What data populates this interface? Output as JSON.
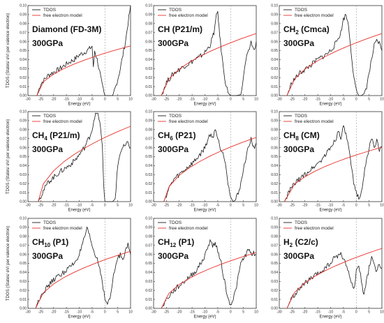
{
  "figure": {
    "ylabel": "TDOS (States/ eV/ per valence electron)",
    "xlabel": "Energy (eV)",
    "legend": [
      "TDOS",
      "free electron model"
    ],
    "pressure": "300GPa"
  },
  "colors": {
    "tdos": "#1a1a1a",
    "free_electron": "#e8302a",
    "zero_line": "#9a9a9a",
    "axis": "#333333"
  },
  "chart_data": [
    {
      "type": "line",
      "title": "Diamond (FD-3M)",
      "formula": "Diamond",
      "subscript": "",
      "formula_rest": "",
      "space_group": "(FD-3M)",
      "xlim": [
        -30,
        10
      ],
      "ylim": [
        0,
        0.1
      ],
      "xticks": [
        -30,
        -25,
        -20,
        -15,
        -10,
        -5,
        0,
        5,
        10
      ],
      "yticks": [
        0.0,
        0.01,
        0.02,
        0.03,
        0.04,
        0.05,
        0.06,
        0.07,
        0.08,
        0.09,
        0.1
      ],
      "series": [
        {
          "name": "TDOS",
          "x": [
            -26.5,
            -25,
            -22,
            -20,
            -18,
            -16,
            -14,
            -12,
            -10,
            -8,
            -6,
            -5,
            -4.5,
            -4,
            -3,
            -2,
            -1,
            0,
            3,
            4,
            5,
            6,
            7,
            8,
            9,
            10
          ],
          "y": [
            0,
            0.013,
            0.023,
            0.026,
            0.029,
            0.033,
            0.037,
            0.04,
            0.045,
            0.048,
            0.052,
            0.055,
            0.03,
            0.05,
            0.04,
            0.026,
            0.01,
            0,
            0,
            0.008,
            0.018,
            0.03,
            0.045,
            0.06,
            0.08,
            0.1
          ]
        },
        {
          "name": "free electron model",
          "x": [
            -26.5,
            -24,
            -20,
            -16,
            -12,
            -8,
            -4,
            0,
            4,
            8,
            10
          ],
          "y": [
            0,
            0.0153,
            0.0237,
            0.0299,
            0.035,
            0.0394,
            0.0434,
            0.0471,
            0.0505,
            0.0537,
            0.0552
          ]
        }
      ]
    },
    {
      "type": "line",
      "title": "CH (P21/m)",
      "formula": "CH",
      "subscript": "",
      "formula_rest": "",
      "space_group": "(P21/m)",
      "xlim": [
        -30,
        10
      ],
      "ylim": [
        0,
        0.1
      ],
      "xticks": [
        -30,
        -25,
        -20,
        -15,
        -10,
        -5,
        0,
        5,
        10
      ],
      "yticks": [
        0.0,
        0.01,
        0.02,
        0.03,
        0.04,
        0.05,
        0.06,
        0.07,
        0.08,
        0.09,
        0.1
      ],
      "series": [
        {
          "name": "TDOS",
          "x": [
            -27,
            -25,
            -22,
            -20,
            -18,
            -16,
            -14,
            -12,
            -10,
            -8,
            -6.5,
            -5.5,
            -5,
            -4.5,
            -4,
            -3,
            -2,
            -1,
            0,
            2,
            4,
            5,
            6,
            7,
            8,
            9,
            10
          ],
          "y": [
            0,
            0.015,
            0.025,
            0.029,
            0.033,
            0.036,
            0.04,
            0.043,
            0.048,
            0.056,
            0.07,
            0.088,
            0.094,
            0.075,
            0.06,
            0.035,
            0.015,
            0.003,
            0,
            0,
            0.001,
            0.02,
            0.04,
            0.048,
            0.06,
            0.05,
            0.06
          ]
        },
        {
          "name": "free electron model",
          "x": [
            -27,
            -24,
            -20,
            -16,
            -12,
            -8,
            -4,
            0,
            4,
            8,
            10
          ],
          "y": [
            0,
            0.0187,
            0.0294,
            0.0371,
            0.0435,
            0.0491,
            0.0541,
            0.0587,
            0.063,
            0.067,
            0.0689
          ]
        }
      ]
    },
    {
      "type": "line",
      "title": "CH2 (Cmca)",
      "formula": "CH",
      "subscript": "2",
      "formula_rest": "",
      "space_group": "(Cmca)",
      "xlim": [
        -30,
        10
      ],
      "ylim": [
        0,
        0.1
      ],
      "xticks": [
        -30,
        -25,
        -20,
        -15,
        -10,
        -5,
        0,
        5,
        10
      ],
      "yticks": [
        0.0,
        0.01,
        0.02,
        0.03,
        0.04,
        0.05,
        0.06,
        0.07,
        0.08,
        0.09,
        0.1
      ],
      "series": [
        {
          "name": "TDOS",
          "x": [
            -27,
            -25,
            -22,
            -20,
            -18,
            -16,
            -14,
            -12,
            -10,
            -8,
            -6,
            -5,
            -4,
            -3,
            -2,
            -1,
            0,
            1,
            2,
            3,
            4,
            5,
            6,
            7,
            8,
            9,
            10
          ],
          "y": [
            0,
            0.015,
            0.025,
            0.029,
            0.033,
            0.038,
            0.042,
            0.045,
            0.05,
            0.058,
            0.07,
            0.085,
            0.09,
            0.078,
            0.05,
            0.02,
            0.005,
            0,
            0,
            0.002,
            0.01,
            0.025,
            0.04,
            0.055,
            0.06,
            0.058,
            0.05
          ]
        },
        {
          "name": "free electron model",
          "x": [
            -27,
            -24,
            -20,
            -16,
            -12,
            -8,
            -4,
            0,
            4,
            8,
            10
          ],
          "y": [
            0,
            0.0187,
            0.0294,
            0.0371,
            0.0435,
            0.0491,
            0.0541,
            0.0587,
            0.063,
            0.067,
            0.0689
          ]
        }
      ]
    },
    {
      "type": "line",
      "title": "CH4 (P21/m)",
      "formula": "CH",
      "subscript": "4",
      "formula_rest": "",
      "space_group": "(P21/m)",
      "xlim": [
        -30,
        10
      ],
      "ylim": [
        0,
        0.1
      ],
      "xticks": [
        -30,
        -25,
        -20,
        -15,
        -10,
        -5,
        0,
        5,
        10
      ],
      "yticks": [
        0.0,
        0.01,
        0.02,
        0.03,
        0.04,
        0.05,
        0.06,
        0.07,
        0.08,
        0.09,
        0.1
      ],
      "series": [
        {
          "name": "TDOS",
          "x": [
            -26,
            -24,
            -22,
            -20,
            -18,
            -16,
            -14,
            -12,
            -10,
            -8,
            -6,
            -5,
            -4,
            -3,
            -2,
            -1,
            -0.5,
            0,
            3,
            4,
            5,
            6,
            7,
            8,
            9,
            10
          ],
          "y": [
            0,
            0.012,
            0.022,
            0.027,
            0.032,
            0.036,
            0.04,
            0.045,
            0.052,
            0.06,
            0.072,
            0.08,
            0.095,
            0.098,
            0.09,
            0.06,
            0.02,
            0,
            0,
            0.003,
            0.04,
            0.055,
            0.06,
            0.062,
            0.065,
            0.06
          ]
        },
        {
          "name": "free electron model",
          "x": [
            -26,
            -24,
            -20,
            -16,
            -12,
            -8,
            -4,
            0,
            4,
            8,
            10
          ],
          "y": [
            0,
            0.0196,
            0.0343,
            0.0443,
            0.0524,
            0.0594,
            0.0656,
            0.0713,
            0.0765,
            0.0814,
            0.0837
          ]
        }
      ]
    },
    {
      "type": "line",
      "title": "CH6 (P21)",
      "formula": "CH",
      "subscript": "6",
      "formula_rest": "",
      "space_group": "(P21)",
      "xlim": [
        -30,
        10
      ],
      "ylim": [
        0,
        0.1
      ],
      "xticks": [
        -30,
        -25,
        -20,
        -15,
        -10,
        -5,
        0,
        5,
        10
      ],
      "yticks": [
        0.0,
        0.01,
        0.02,
        0.03,
        0.04,
        0.05,
        0.06,
        0.07,
        0.08,
        0.09,
        0.1
      ],
      "series": [
        {
          "name": "TDOS",
          "x": [
            -26,
            -24,
            -22,
            -20,
            -18,
            -16,
            -14,
            -12,
            -10,
            -9,
            -8,
            -7,
            -6,
            -5,
            -4,
            -3,
            -2,
            -1,
            0,
            1,
            2,
            3,
            4,
            5,
            6,
            7,
            8,
            9,
            10
          ],
          "y": [
            0,
            0.015,
            0.025,
            0.03,
            0.035,
            0.04,
            0.045,
            0.052,
            0.06,
            0.068,
            0.075,
            0.07,
            0.082,
            0.07,
            0.06,
            0.055,
            0.045,
            0.02,
            0.005,
            0,
            0.002,
            0.01,
            0.02,
            0.035,
            0.05,
            0.06,
            0.07,
            0.06,
            0.065
          ]
        },
        {
          "name": "free electron model",
          "x": [
            -26,
            -24,
            -20,
            -16,
            -12,
            -8,
            -4,
            0,
            4,
            8,
            10
          ],
          "y": [
            0,
            0.0166,
            0.0292,
            0.0377,
            0.0446,
            0.0506,
            0.0559,
            0.0607,
            0.0652,
            0.0693,
            0.0713
          ]
        }
      ]
    },
    {
      "type": "line",
      "title": "CH8 (CM)",
      "formula": "CH",
      "subscript": "8",
      "formula_rest": "",
      "space_group": "(CM)",
      "xlim": [
        -30,
        10
      ],
      "ylim": [
        0,
        0.1
      ],
      "xticks": [
        -30,
        -25,
        -20,
        -15,
        -10,
        -5,
        0,
        5,
        10
      ],
      "yticks": [
        0.0,
        0.01,
        0.02,
        0.03,
        0.04,
        0.05,
        0.06,
        0.07,
        0.08,
        0.09,
        0.1
      ],
      "series": [
        {
          "name": "TDOS",
          "x": [
            -28,
            -26,
            -24,
            -22,
            -20,
            -18,
            -16,
            -14,
            -12,
            -10,
            -8,
            -7,
            -6,
            -5,
            -4,
            -3,
            -2,
            -1,
            0,
            1,
            2,
            3,
            4,
            5,
            6,
            7,
            8,
            9,
            10
          ],
          "y": [
            0,
            0.012,
            0.02,
            0.025,
            0.03,
            0.035,
            0.04,
            0.045,
            0.052,
            0.06,
            0.07,
            0.078,
            0.072,
            0.082,
            0.075,
            0.06,
            0.04,
            0.02,
            0.01,
            0.005,
            0.01,
            0.03,
            0.045,
            0.06,
            0.07,
            0.062,
            0.068,
            0.055,
            0.06
          ]
        },
        {
          "name": "free electron model",
          "x": [
            -28,
            -24,
            -20,
            -16,
            -12,
            -8,
            -4,
            0,
            4,
            8,
            10
          ],
          "y": [
            0,
            0.0196,
            0.0277,
            0.0339,
            0.0392,
            0.0438,
            0.048,
            0.0518,
            0.0554,
            0.0588,
            0.0604
          ]
        }
      ]
    },
    {
      "type": "line",
      "title": "CH10 (P1)",
      "formula": "CH",
      "subscript": "10",
      "formula_rest": "",
      "space_group": "(P1)",
      "xlim": [
        -30,
        10
      ],
      "ylim": [
        0,
        0.1
      ],
      "xticks": [
        -30,
        -25,
        -20,
        -15,
        -10,
        -5,
        0,
        5,
        10
      ],
      "yticks": [
        0.0,
        0.01,
        0.02,
        0.03,
        0.04,
        0.05,
        0.06,
        0.07,
        0.08,
        0.09,
        0.1
      ],
      "series": [
        {
          "name": "TDOS",
          "x": [
            -27,
            -25,
            -22,
            -20,
            -18,
            -16,
            -14,
            -12,
            -10,
            -9,
            -8,
            -7,
            -6,
            -5,
            -4,
            -3,
            -2,
            -1,
            0,
            1,
            2,
            3,
            4,
            5,
            6,
            7,
            8,
            9,
            10
          ],
          "y": [
            0,
            0.015,
            0.025,
            0.032,
            0.036,
            0.04,
            0.045,
            0.05,
            0.06,
            0.068,
            0.078,
            0.088,
            0.08,
            0.07,
            0.06,
            0.055,
            0.045,
            0.03,
            0.01,
            0.005,
            0.01,
            0.03,
            0.045,
            0.055,
            0.06,
            0.055,
            0.065,
            0.07,
            0.06
          ]
        },
        {
          "name": "free electron model",
          "x": [
            -27,
            -24,
            -20,
            -16,
            -12,
            -8,
            -4,
            0,
            4,
            8,
            10
          ],
          "y": [
            0,
            0.0172,
            0.0271,
            0.0342,
            0.0401,
            0.0452,
            0.0498,
            0.0541,
            0.058,
            0.0617,
            0.0634
          ]
        }
      ]
    },
    {
      "type": "line",
      "title": "CH12 (P1)",
      "formula": "CH",
      "subscript": "12",
      "formula_rest": "",
      "space_group": "(P1)",
      "xlim": [
        -30,
        10
      ],
      "ylim": [
        0,
        0.1
      ],
      "xticks": [
        -30,
        -25,
        -20,
        -15,
        -10,
        -5,
        0,
        5,
        10
      ],
      "yticks": [
        0.0,
        0.01,
        0.02,
        0.03,
        0.04,
        0.05,
        0.06,
        0.07,
        0.08,
        0.09,
        0.1
      ],
      "series": [
        {
          "name": "TDOS",
          "x": [
            -27,
            -25,
            -22,
            -20,
            -18,
            -16,
            -14,
            -12,
            -10,
            -9,
            -8,
            -7,
            -6,
            -5,
            -4,
            -3,
            -2,
            -1,
            0,
            1,
            2,
            3,
            4,
            5,
            6,
            7,
            8,
            9,
            10
          ],
          "y": [
            0,
            0.01,
            0.02,
            0.025,
            0.03,
            0.035,
            0.04,
            0.048,
            0.058,
            0.068,
            0.075,
            0.07,
            0.072,
            0.065,
            0.055,
            0.04,
            0.025,
            0.01,
            0.005,
            0.01,
            0.02,
            0.035,
            0.05,
            0.055,
            0.06,
            0.065,
            0.06,
            0.062,
            0.06
          ]
        },
        {
          "name": "free electron model",
          "x": [
            -27,
            -24,
            -20,
            -16,
            -12,
            -8,
            -4,
            0,
            4,
            8,
            10
          ],
          "y": [
            0,
            0.0168,
            0.0265,
            0.0334,
            0.0392,
            0.0442,
            0.0487,
            0.0529,
            0.0567,
            0.0603,
            0.062
          ]
        }
      ]
    },
    {
      "type": "line",
      "title": "H2 (C2/c)",
      "formula": "H",
      "subscript": "2",
      "formula_rest": "",
      "space_group": "(C2/c)",
      "xlim": [
        -30,
        10
      ],
      "ylim": [
        0,
        0.1
      ],
      "xticks": [
        -30,
        -25,
        -20,
        -15,
        -10,
        -5,
        0,
        5,
        10
      ],
      "yticks": [
        0.0,
        0.01,
        0.02,
        0.03,
        0.04,
        0.05,
        0.06,
        0.07,
        0.08,
        0.09,
        0.1
      ],
      "series": [
        {
          "name": "TDOS",
          "x": [
            -27,
            -25,
            -22,
            -20,
            -18,
            -16,
            -14,
            -12,
            -10,
            -8,
            -6,
            -5,
            -4,
            -3,
            -2,
            -1,
            0,
            1,
            2,
            3,
            4,
            5,
            6,
            7,
            8,
            9,
            10
          ],
          "y": [
            0,
            0.012,
            0.022,
            0.028,
            0.032,
            0.036,
            0.04,
            0.045,
            0.05,
            0.058,
            0.06,
            0.055,
            0.05,
            0.04,
            0.03,
            0.02,
            0.04,
            0.05,
            0.03,
            0.015,
            0.03,
            0.045,
            0.055,
            0.05,
            0.04,
            0.05,
            0.045
          ]
        },
        {
          "name": "free electron model",
          "x": [
            -27,
            -24,
            -20,
            -16,
            -12,
            -8,
            -4,
            0,
            4,
            8,
            10
          ],
          "y": [
            0,
            0.018,
            0.0284,
            0.0359,
            0.042,
            0.0474,
            0.0522,
            0.0567,
            0.0608,
            0.0647,
            0.0665
          ]
        }
      ]
    }
  ]
}
